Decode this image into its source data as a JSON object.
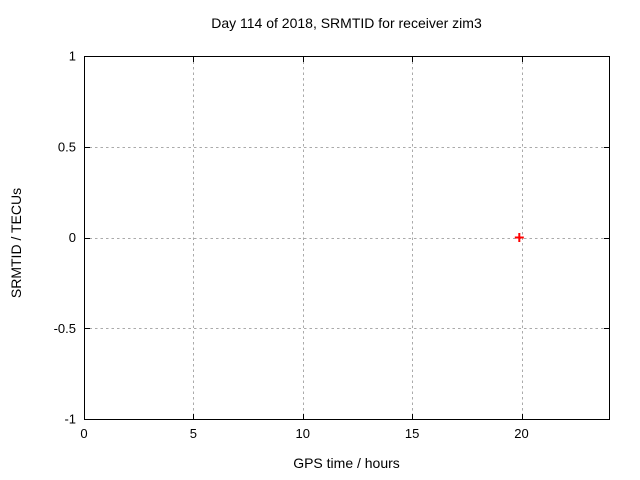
{
  "chart_data": {
    "type": "scatter",
    "title": "Day 114 of 2018, SRMTID for receiver zim3",
    "xlabel": "GPS time / hours",
    "ylabel": "SRMTID / TECUs",
    "xlim": [
      0,
      24
    ],
    "ylim": [
      -1,
      1
    ],
    "xticks": [
      0,
      5,
      10,
      15,
      20
    ],
    "xtick_labels": [
      "0",
      "5",
      "10",
      "15",
      "20"
    ],
    "yticks": [
      -1,
      -0.5,
      0,
      0.5,
      1
    ],
    "ytick_labels": [
      "-1",
      "-0.5",
      "0",
      "0.5",
      "1"
    ],
    "grid": true,
    "grid_style": "dotted",
    "legend": "none",
    "series": [
      {
        "name": "SRMTID",
        "marker": "plus",
        "color": "#ff0000",
        "points": [
          {
            "x": 19.9,
            "y": 0.0
          }
        ]
      }
    ]
  },
  "colors": {
    "background": "#ffffff",
    "border": "#000000",
    "grid": "#aaaaaa",
    "text": "#000000",
    "marker": "#ff0000"
  }
}
